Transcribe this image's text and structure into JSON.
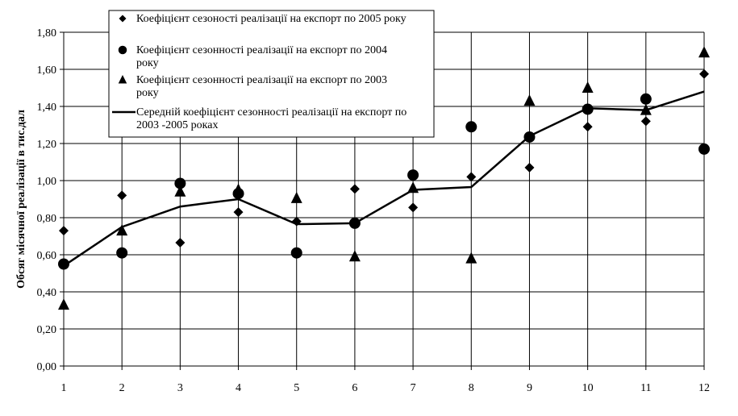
{
  "chart_data": {
    "type": "scatter",
    "title": "",
    "xlabel": "",
    "ylabel": "Обсяг місячної реалізації в тис.дал",
    "x": [
      1,
      2,
      3,
      4,
      5,
      6,
      7,
      8,
      9,
      10,
      11,
      12
    ],
    "xticks": [
      "1",
      "2",
      "3",
      "4",
      "5",
      "6",
      "7",
      "8",
      "9",
      "10",
      "11",
      "12"
    ],
    "ylim": [
      0,
      1.8
    ],
    "yticks": [
      "0,00",
      "0,20",
      "0,40",
      "0,60",
      "0,80",
      "1,00",
      "1,20",
      "1,40",
      "1,60",
      "1,80"
    ],
    "grid": true,
    "legend_position": "top-left",
    "series": [
      {
        "name": "Коефіцієнт сезоності реалізації на експорт по 2005 року",
        "marker": "diamond",
        "color": "#000000",
        "values": [
          0.73,
          0.92,
          0.665,
          0.83,
          0.78,
          0.955,
          0.855,
          1.02,
          1.07,
          1.29,
          1.32,
          1.575
        ]
      },
      {
        "name": "Коефіцієнт сезонності реалізації на експорт по 2004 року",
        "marker": "circle",
        "color": "#000000",
        "values": [
          0.55,
          0.61,
          0.985,
          0.93,
          0.61,
          0.77,
          1.03,
          1.29,
          1.235,
          1.385,
          1.44,
          1.17
        ]
      },
      {
        "name": "Коефіцієнт сезонності реалізації на експорт по 2003 року",
        "marker": "triangle",
        "color": "#000000",
        "values": [
          0.33,
          0.73,
          0.94,
          0.95,
          0.905,
          0.59,
          0.96,
          0.58,
          1.43,
          1.5,
          1.38,
          1.69
        ]
      },
      {
        "name": "Середній коефіцієнт сезонності реалізації на експорт по 2003 -2005 роках",
        "marker": "line",
        "color": "#000000",
        "values": [
          0.54,
          0.75,
          0.86,
          0.9,
          0.765,
          0.77,
          0.95,
          0.965,
          1.24,
          1.39,
          1.38,
          1.48
        ]
      }
    ]
  }
}
